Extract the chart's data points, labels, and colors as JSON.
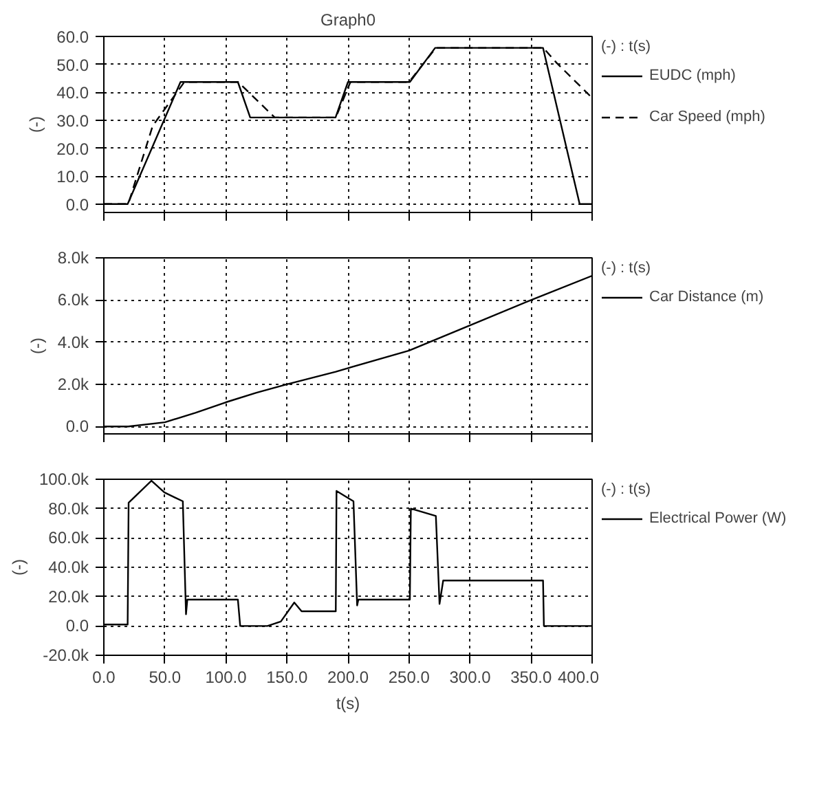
{
  "chart_data": [
    {
      "type": "line",
      "title": "Graph0",
      "ylabel": "(-)",
      "legend_title": "(-) : t(s)",
      "legend": "right",
      "grid": true,
      "tick_labels": "y",
      "xlim": [
        0,
        400
      ],
      "xticks": [
        0,
        50,
        100,
        150,
        200,
        250,
        300,
        350,
        400
      ],
      "ylim": [
        -3,
        60
      ],
      "yticks": [
        {
          "value": 0,
          "label": "0.0"
        },
        {
          "value": 10,
          "label": "10.0"
        },
        {
          "value": 20,
          "label": "20.0"
        },
        {
          "value": 30,
          "label": "30.0"
        },
        {
          "value": 40,
          "label": "40.0"
        },
        {
          "value": 50,
          "label": "50.0"
        },
        {
          "value": 60,
          "label": "60.0"
        }
      ],
      "series": [
        {
          "name": "EUDC (mph)",
          "color": "#000000",
          "line_style": "solid",
          "x": [
            0,
            19.5,
            62.8,
            109.8,
            119.9,
            189.8,
            200,
            250.7,
            271.4,
            359.8,
            389.8,
            400
          ],
          "values": [
            0,
            0,
            43.7,
            43.7,
            31,
            31,
            43.7,
            43.7,
            55.9,
            55.9,
            0,
            0
          ]
        },
        {
          "name": "Car Speed (mph)",
          "color": "#000000",
          "line_style": "dashed",
          "x": [
            0,
            20,
            40,
            66,
            110,
            140,
            190,
            202,
            250,
            272,
            360,
            371,
            400
          ],
          "values": [
            0,
            0,
            28,
            43.7,
            43.7,
            31,
            31,
            43.7,
            43.7,
            55.9,
            55.9,
            50.5,
            38
          ]
        }
      ]
    },
    {
      "type": "line",
      "ylabel": "(-)",
      "legend_title": "(-) : t(s)",
      "legend": "right",
      "grid": true,
      "tick_labels": "y",
      "xlim": [
        0,
        400
      ],
      "xticks": [
        0,
        50,
        100,
        150,
        200,
        250,
        300,
        350,
        400
      ],
      "ylim": [
        -350,
        8000
      ],
      "yticks": [
        {
          "value": 0,
          "label": "0.0"
        },
        {
          "value": 2000,
          "label": "2.0k"
        },
        {
          "value": 4000,
          "label": "4.0k"
        },
        {
          "value": 6000,
          "label": "6.0k"
        },
        {
          "value": 8000,
          "label": "8.0k"
        }
      ],
      "series": [
        {
          "name": "Car Distance (m)",
          "color": "#000000",
          "line_style": "solid",
          "x": [
            0,
            20,
            50,
            75,
            100,
            125,
            150,
            190,
            250,
            300,
            350,
            400
          ],
          "values": [
            0,
            0,
            200,
            650,
            1150,
            1600,
            2000,
            2600,
            3600,
            4800,
            6000,
            7150
          ]
        }
      ]
    },
    {
      "type": "line",
      "ylabel": "(-)",
      "xlabel": "t(s)",
      "legend_title": "(-) : t(s)",
      "legend": "right",
      "grid": true,
      "xlim": [
        0,
        400
      ],
      "xticks": [
        {
          "value": 0,
          "label": "0.0"
        },
        {
          "value": 50,
          "label": "50.0"
        },
        {
          "value": 100,
          "label": "100.0"
        },
        {
          "value": 150,
          "label": "150.0"
        },
        {
          "value": 200,
          "label": "200.0"
        },
        {
          "value": 250,
          "label": "250.0"
        },
        {
          "value": 300,
          "label": "300.0"
        },
        {
          "value": 350,
          "label": "350.0"
        },
        {
          "value": 400,
          "label": "400.0"
        }
      ],
      "ylim": [
        -20000,
        100000
      ],
      "yticks": [
        {
          "value": -20000,
          "label": "-20.0k"
        },
        {
          "value": 0,
          "label": "0.0"
        },
        {
          "value": 20000,
          "label": "20.0k"
        },
        {
          "value": 40000,
          "label": "40.0k"
        },
        {
          "value": 60000,
          "label": "60.0k"
        },
        {
          "value": 80000,
          "label": "80.0k"
        },
        {
          "value": 100000,
          "label": "100.0k"
        }
      ],
      "series": [
        {
          "name": "Electrical Power (W)",
          "color": "#000000",
          "line_style": "solid",
          "x": [
            0,
            19.5,
            20.3,
            39,
            49.6,
            64.7,
            67.3,
            68.4,
            109.8,
            111.7,
            134,
            145,
            156,
            162,
            190,
            190.6,
            204.5,
            207.5,
            208.5,
            250.7,
            251.5,
            272,
            275,
            278,
            359.8,
            360.5,
            400
          ],
          "values": [
            1000,
            1000,
            84000,
            99000,
            91000,
            85000,
            8000,
            18000,
            18000,
            0,
            0,
            3000,
            16000,
            10000,
            10000,
            92000,
            85000,
            14000,
            18000,
            18000,
            80000,
            75000,
            15000,
            31000,
            31000,
            0,
            0
          ]
        }
      ]
    }
  ]
}
